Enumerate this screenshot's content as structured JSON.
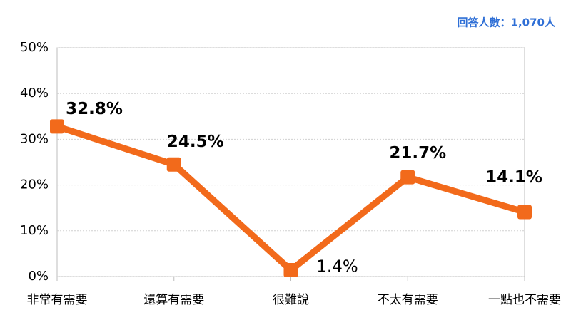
{
  "chart_data": {
    "type": "line",
    "annotation": "回答人數：1,070人",
    "categories": [
      "非常有需要",
      "還算有需要",
      "很難說",
      "不太有需要",
      "一點也不需要"
    ],
    "values": [
      32.8,
      24.5,
      1.4,
      21.7,
      14.1
    ],
    "value_labels": [
      "32.8%",
      "24.5%",
      "1.4%",
      "21.7%",
      "14.1%"
    ],
    "color": "#f26a1b",
    "ylim": [
      0,
      50
    ],
    "yticks": [
      {
        "value": 0,
        "label": "0%"
      },
      {
        "value": 10,
        "label": "10%"
      },
      {
        "value": 20,
        "label": "20%"
      },
      {
        "value": 30,
        "label": "30%"
      },
      {
        "value": 40,
        "label": "40%"
      },
      {
        "value": 50,
        "label": "50%"
      }
    ],
    "grid": true
  }
}
